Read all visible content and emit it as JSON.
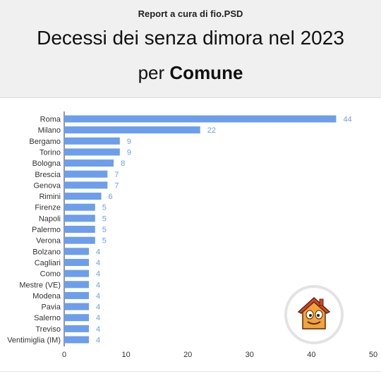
{
  "header": {
    "report_credit": "Report a cura di fio.PSD",
    "title_line1": "Decessi dei senza dimora nel 2023",
    "title_line2_prefix": "per ",
    "title_line2_bold": "Comune"
  },
  "colors": {
    "bar": "#6d9eeb",
    "value_label": "#6d9eeb",
    "axis_text": "#333333",
    "header_bg": "#f0f0f0"
  },
  "chart_data": {
    "type": "bar",
    "orientation": "horizontal",
    "categories": [
      "Roma",
      "Milano",
      "Bergamo",
      "Torino",
      "Bologna",
      "Brescia",
      "Genova",
      "Rimini",
      "Firenze",
      "Napoli",
      "Palermo",
      "Verona",
      "Bolzano",
      "Cagliari",
      "Como",
      "Mestre (VE)",
      "Modena",
      "Pavia",
      "Salerno",
      "Treviso",
      "Ventimiglia (IM)"
    ],
    "values": [
      44,
      22,
      9,
      9,
      8,
      7,
      7,
      6,
      5,
      5,
      5,
      5,
      4,
      4,
      4,
      4,
      4,
      4,
      4,
      4,
      4
    ],
    "xlim": [
      0,
      50
    ],
    "xticks": [
      0,
      10,
      20,
      30,
      40,
      50
    ],
    "grid": false,
    "legend": "none",
    "data_labels": true
  },
  "logo": {
    "icon": "house-face-icon"
  }
}
